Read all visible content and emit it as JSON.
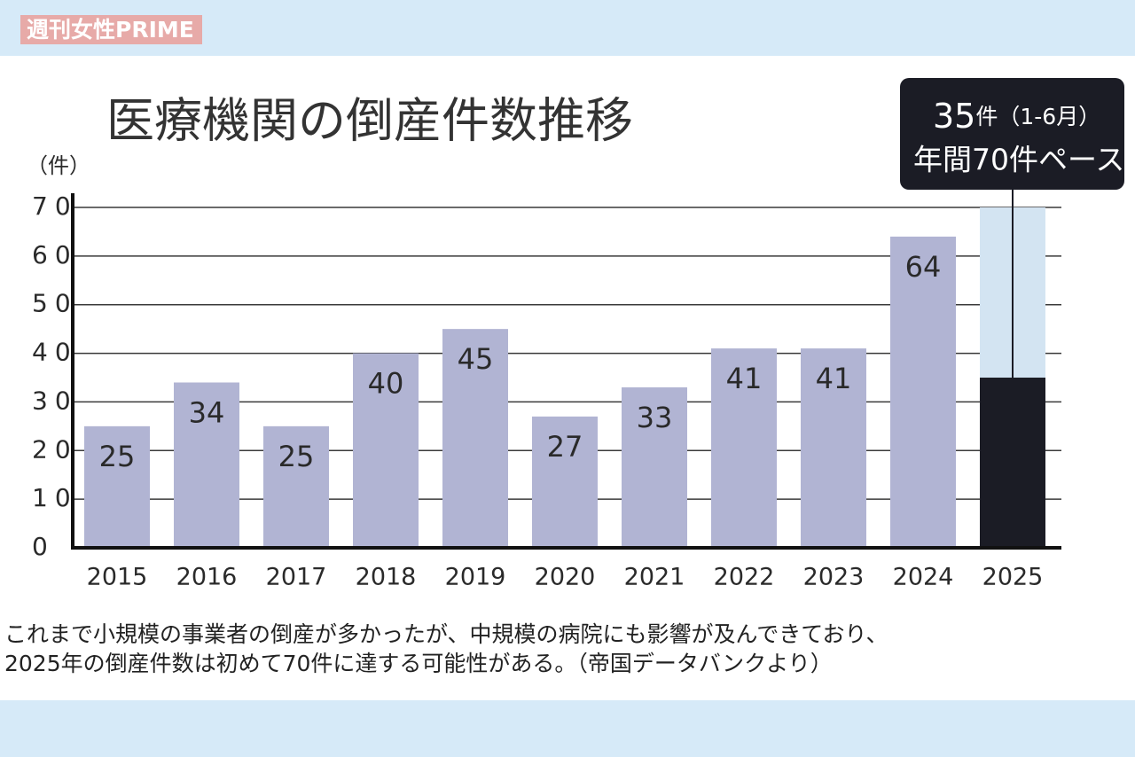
{
  "watermark": "週刊女性PRIME",
  "chart_data": {
    "type": "bar",
    "title": "医療機関の倒産件数推移",
    "y_label": "（件）",
    "categories": [
      "2015",
      "2016",
      "2017",
      "2018",
      "2019",
      "2020",
      "2021",
      "2022",
      "2023",
      "2024",
      "2025"
    ],
    "values": [
      25,
      34,
      25,
      40,
      45,
      27,
      33,
      41,
      41,
      64,
      35
    ],
    "value_labels": [
      "25",
      "34",
      "25",
      "40",
      "45",
      "27",
      "33",
      "41",
      "41",
      "64",
      null
    ],
    "colors": [
      "#b1b4d3",
      "#b1b4d3",
      "#b1b4d3",
      "#b1b4d3",
      "#b1b4d3",
      "#b1b4d3",
      "#b1b4d3",
      "#b1b4d3",
      "#b1b4d3",
      "#b1b4d3",
      "#1b1c25"
    ],
    "projection_values": [
      null,
      null,
      null,
      null,
      null,
      null,
      null,
      null,
      null,
      null,
      70
    ],
    "projection_color": "#d3e4f2",
    "ylim": [
      0,
      70
    ],
    "yticks": [
      0,
      10,
      20,
      30,
      40,
      50,
      60,
      70
    ],
    "grid": true,
    "annotation": {
      "value_text": "35",
      "unit_text": "件（1-6月）",
      "line2": "年間70件ペース"
    }
  },
  "caption": [
    "これまで小規模の事業者の倒産が多かったが、中規模の病院にも影響が及んできており、",
    "2025年の倒産件数は初めて70件に達する可能性がある。（帝国データバンクより）"
  ]
}
